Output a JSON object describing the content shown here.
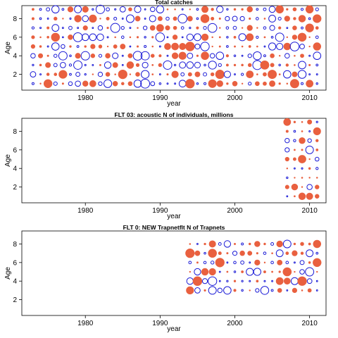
{
  "colors": {
    "positive": "#e9603f",
    "negative": "#1a1ad6"
  },
  "chart_data": [
    {
      "type": "scatter",
      "subtype": "bubble-residuals",
      "title": "Total catches",
      "xlabel": "year",
      "ylabel": "Age",
      "xlim": [
        1971.5,
        2012.2
      ],
      "ylim": [
        0.3,
        9.4
      ],
      "xticks": [
        1980,
        1990,
        2000,
        2010
      ],
      "yticks": [
        2,
        4,
        6,
        8
      ],
      "years": [
        1973,
        2011
      ],
      "ages": [
        1,
        9
      ],
      "grid": false,
      "legend": "none"
    },
    {
      "type": "scatter",
      "subtype": "bubble-residuals",
      "title": "FLT 03:   acoustic   N of individuals, millions",
      "xlabel": "year",
      "ylabel": "Age",
      "xlim": [
        1971.5,
        2012.2
      ],
      "ylim": [
        0.3,
        9.4
      ],
      "xticks": [
        1980,
        1990,
        2000,
        2010
      ],
      "yticks": [
        2,
        4,
        6,
        8
      ],
      "years": [
        2007,
        2011
      ],
      "ages": [
        1,
        9
      ],
      "grid": false,
      "legend": "none"
    },
    {
      "type": "scatter",
      "subtype": "bubble-residuals",
      "title": "FLT 0: NEW Trapnetflt     N of Trapnets",
      "xlabel": "year",
      "ylabel": "Age",
      "xlim": [
        1971.5,
        2012.2
      ],
      "ylim": [
        0.3,
        9.4
      ],
      "xticks": [
        1980,
        1990,
        2000,
        2010
      ],
      "yticks": [
        2,
        4,
        6,
        8
      ],
      "years": [
        1994,
        2011
      ],
      "ages": [
        3,
        8
      ],
      "grid": false,
      "legend": "none"
    }
  ]
}
